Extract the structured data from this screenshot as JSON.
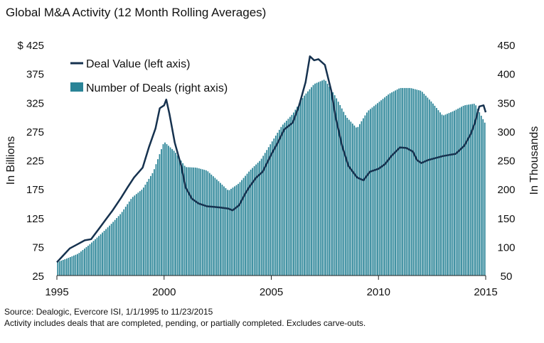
{
  "header": {
    "title": "Global M&A Activity (12 Month Rolling Averages)"
  },
  "footnotes": {
    "source": "Source: Dealogic,  Evercore ISI, 1/1/1995 to 11/23/2015",
    "note": "Activity includes deals that are completed, pending, or partially completed. Excludes carve-outs."
  },
  "chart_data": {
    "type": "line+bar",
    "title": "Global M&A Activity (12 Month Rolling Averages)",
    "x_range": [
      1995,
      2015
    ],
    "x_ticks": [
      1995,
      2000,
      2005,
      2010,
      2015
    ],
    "left_axis": {
      "label": "In Billions",
      "range": [
        25,
        425
      ],
      "ticks": [
        25,
        75,
        125,
        175,
        225,
        275,
        325,
        375,
        425
      ],
      "first_tick_prefix": "$ "
    },
    "right_axis": {
      "label": "In Thousands",
      "range": [
        50,
        450
      ],
      "ticks": [
        50,
        100,
        150,
        200,
        250,
        300,
        350,
        400,
        450
      ]
    },
    "legend": {
      "placement": "top-left",
      "items": [
        "Deal Value (left axis)",
        "Number of Deals (right axis)"
      ]
    },
    "colors": {
      "line": "#16324f",
      "bars": "#2a8497"
    },
    "series": [
      {
        "name": "Deal Value (left axis)",
        "axis": "left",
        "style": "line",
        "points": [
          [
            1995.0,
            48
          ],
          [
            1995.3,
            60
          ],
          [
            1995.6,
            72
          ],
          [
            1996.0,
            80
          ],
          [
            1996.3,
            86
          ],
          [
            1996.6,
            88
          ],
          [
            1997.0,
            108
          ],
          [
            1997.3,
            123
          ],
          [
            1997.6,
            138
          ],
          [
            1998.0,
            160
          ],
          [
            1998.3,
            178
          ],
          [
            1998.6,
            195
          ],
          [
            1999.0,
            212
          ],
          [
            1999.3,
            248
          ],
          [
            1999.6,
            280
          ],
          [
            1999.8,
            315
          ],
          [
            2000.0,
            320
          ],
          [
            2000.1,
            330
          ],
          [
            2000.25,
            305
          ],
          [
            2000.5,
            255
          ],
          [
            2000.8,
            215
          ],
          [
            2001.0,
            178
          ],
          [
            2001.3,
            158
          ],
          [
            2001.6,
            150
          ],
          [
            2002.0,
            145
          ],
          [
            2002.3,
            144
          ],
          [
            2002.6,
            143
          ],
          [
            2003.0,
            141
          ],
          [
            2003.2,
            138
          ],
          [
            2003.5,
            147
          ],
          [
            2003.8,
            168
          ],
          [
            2004.0,
            180
          ],
          [
            2004.3,
            195
          ],
          [
            2004.6,
            205
          ],
          [
            2005.0,
            235
          ],
          [
            2005.3,
            255
          ],
          [
            2005.6,
            278
          ],
          [
            2006.0,
            290
          ],
          [
            2006.3,
            320
          ],
          [
            2006.6,
            360
          ],
          [
            2006.8,
            405
          ],
          [
            2007.0,
            398
          ],
          [
            2007.2,
            400
          ],
          [
            2007.5,
            390
          ],
          [
            2007.8,
            345
          ],
          [
            2008.0,
            300
          ],
          [
            2008.3,
            250
          ],
          [
            2008.6,
            215
          ],
          [
            2009.0,
            195
          ],
          [
            2009.3,
            190
          ],
          [
            2009.6,
            205
          ],
          [
            2010.0,
            210
          ],
          [
            2010.3,
            218
          ],
          [
            2010.6,
            232
          ],
          [
            2011.0,
            247
          ],
          [
            2011.3,
            246
          ],
          [
            2011.6,
            240
          ],
          [
            2011.8,
            225
          ],
          [
            2012.0,
            220
          ],
          [
            2012.3,
            225
          ],
          [
            2012.6,
            228
          ],
          [
            2013.0,
            232
          ],
          [
            2013.3,
            234
          ],
          [
            2013.6,
            236
          ],
          [
            2014.0,
            250
          ],
          [
            2014.3,
            270
          ],
          [
            2014.5,
            290
          ],
          [
            2014.7,
            318
          ],
          [
            2014.9,
            320
          ],
          [
            2015.0,
            308
          ]
        ]
      },
      {
        "name": "Number of Deals (right axis)",
        "axis": "right",
        "style": "bar",
        "points": [
          [
            1995.0,
            73
          ],
          [
            1995.5,
            80
          ],
          [
            1996.0,
            88
          ],
          [
            1996.5,
            103
          ],
          [
            1997.0,
            120
          ],
          [
            1997.5,
            138
          ],
          [
            1998.0,
            158
          ],
          [
            1998.5,
            185
          ],
          [
            1999.0,
            200
          ],
          [
            1999.5,
            230
          ],
          [
            2000.0,
            282
          ],
          [
            2000.5,
            265
          ],
          [
            2001.0,
            238
          ],
          [
            2001.5,
            237
          ],
          [
            2002.0,
            232
          ],
          [
            2002.5,
            215
          ],
          [
            2003.0,
            197
          ],
          [
            2003.5,
            210
          ],
          [
            2004.0,
            232
          ],
          [
            2004.5,
            250
          ],
          [
            2005.0,
            280
          ],
          [
            2005.5,
            310
          ],
          [
            2006.0,
            330
          ],
          [
            2006.5,
            360
          ],
          [
            2007.0,
            382
          ],
          [
            2007.5,
            390
          ],
          [
            2008.0,
            360
          ],
          [
            2008.5,
            325
          ],
          [
            2009.0,
            305
          ],
          [
            2009.5,
            335
          ],
          [
            2010.0,
            350
          ],
          [
            2010.5,
            365
          ],
          [
            2011.0,
            375
          ],
          [
            2011.5,
            375
          ],
          [
            2012.0,
            370
          ],
          [
            2012.5,
            350
          ],
          [
            2013.0,
            327
          ],
          [
            2013.5,
            335
          ],
          [
            2014.0,
            345
          ],
          [
            2014.5,
            348
          ],
          [
            2015.0,
            312
          ]
        ]
      }
    ]
  }
}
